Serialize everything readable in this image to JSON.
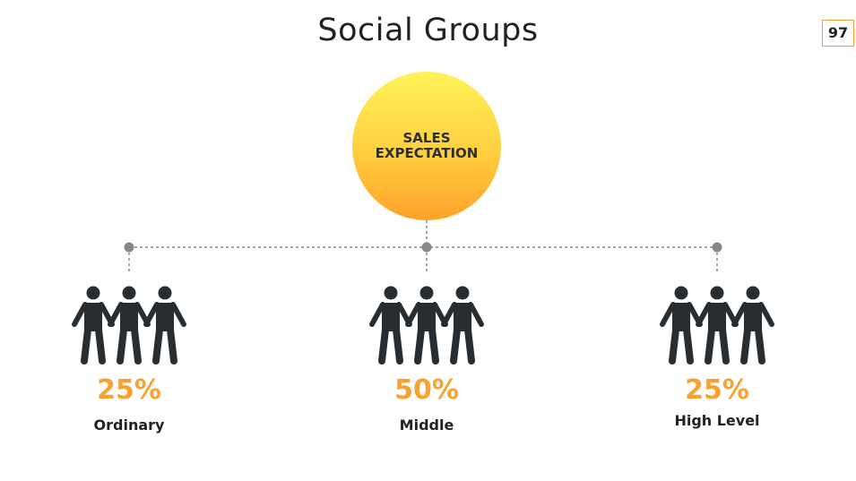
{
  "title": "Social Groups",
  "page_number": "97",
  "center": {
    "line1": "SALES",
    "line2": "EXPECTATION"
  },
  "groups": [
    {
      "percent": "25%",
      "label": "Ordinary"
    },
    {
      "percent": "50%",
      "label": "Middle"
    },
    {
      "percent": "25%",
      "label": "High Level"
    }
  ],
  "colors": {
    "accent": "#f7a231",
    "icon": "#272d30",
    "connector": "#888888"
  }
}
